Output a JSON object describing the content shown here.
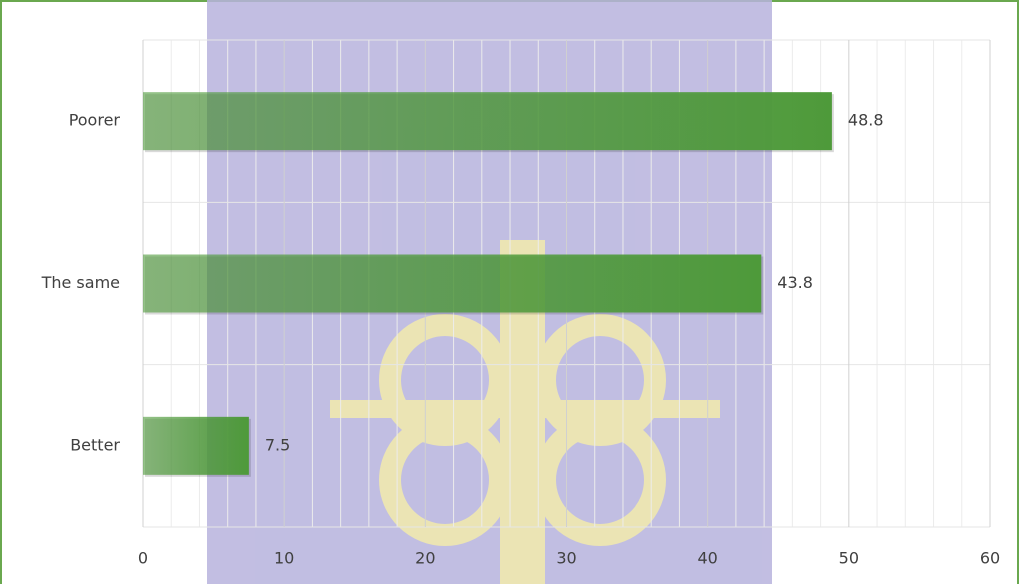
{
  "chart_data": {
    "type": "bar",
    "orientation": "horizontal",
    "categories": [
      "Poorer",
      "The same",
      "Better"
    ],
    "values": [
      48.8,
      43.8,
      7.5
    ],
    "color": "#4e9a3a",
    "xlim": [
      0,
      60
    ],
    "xticks": [
      0,
      10,
      20,
      30,
      40,
      50,
      60
    ],
    "grid": true
  }
}
